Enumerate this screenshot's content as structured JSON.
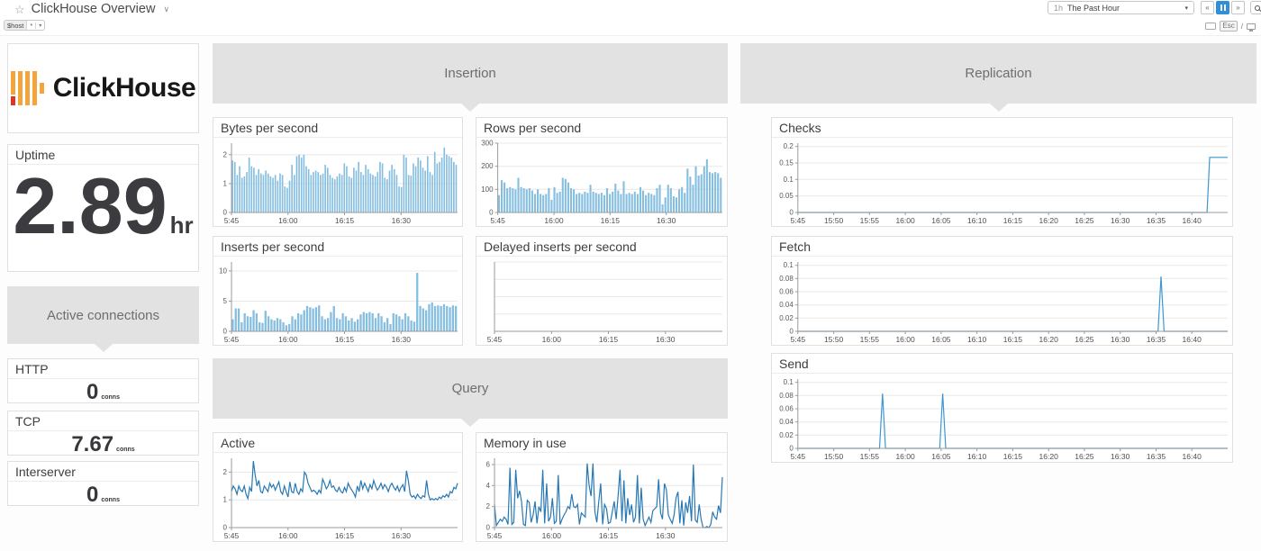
{
  "topbar": {
    "title": "ClickHouse Overview",
    "template_var": {
      "name": "$host",
      "value": "*"
    },
    "time_range": {
      "abbrev": "1h",
      "label": "The Past Hour"
    },
    "hints": {
      "esc": "Esc",
      "slash": "/"
    }
  },
  "icons": {
    "star": "☆",
    "title_chevron": "∨",
    "dropdown_caret": "▾",
    "skip_back": "«",
    "skip_forward": "»"
  },
  "sections": {
    "insertion": "Insertion",
    "query": "Query",
    "replication": "Replication",
    "active_connections": "Active connections"
  },
  "left": {
    "brand": "ClickHouse",
    "uptime": {
      "title": "Uptime",
      "value": "2.89",
      "unit": "hr"
    },
    "connections": [
      {
        "title": "HTTP",
        "value": "0",
        "unit": "conns"
      },
      {
        "title": "TCP",
        "value": "7.67",
        "unit": "conns"
      },
      {
        "title": "Interserver",
        "value": "0",
        "unit": "conns"
      }
    ]
  },
  "colors": {
    "accent_blue": "#2f8fd8",
    "bar_blue": "#86bee0",
    "line_blue": "#2878b4",
    "replication_line_blue": "#3c97d3",
    "header_gray": "#e2e2e2",
    "logo_yellow": "#f3a43b",
    "logo_red": "#e03526"
  },
  "chart_data": {
    "bytes_per_second": {
      "title": "Bytes per second",
      "type": "bar",
      "color": "#86bee0",
      "ylim": [
        0,
        2.4
      ],
      "yticks": [
        {
          "v": 0,
          "label": "0"
        },
        {
          "v": 1,
          "label": "1"
        },
        {
          "v": 2,
          "label": "2"
        }
      ],
      "xticks": [
        {
          "pos": 0,
          "label": "5:45"
        },
        {
          "pos": 0.25,
          "label": "16:00"
        },
        {
          "pos": 0.5,
          "label": "16:15"
        },
        {
          "pos": 0.75,
          "label": "16:30"
        }
      ],
      "values": [
        1.8,
        1.75,
        1.3,
        1.6,
        1.2,
        1.25,
        1.4,
        1.9,
        1.6,
        1.55,
        1.3,
        1.5,
        1.35,
        1.3,
        1.45,
        1.35,
        1.25,
        1.2,
        1.3,
        1.1,
        1.35,
        1.3,
        0.9,
        0.85,
        1.1,
        1.65,
        1.3,
        1.95,
        2.0,
        1.9,
        2.0,
        1.6,
        1.5,
        1.3,
        1.4,
        1.45,
        1.4,
        1.3,
        1.35,
        1.65,
        1.55,
        1.3,
        1.2,
        1.15,
        1.25,
        1.35,
        1.3,
        1.7,
        1.6,
        1.25,
        1.2,
        1.55,
        1.45,
        1.75,
        1.4,
        1.3,
        1.65,
        1.5,
        1.35,
        1.3,
        1.25,
        1.4,
        1.75,
        1.7,
        1.2,
        1.15,
        1.45,
        1.65,
        1.5,
        1.3,
        0.9,
        0.88,
        2.0,
        1.9,
        1.3,
        1.28,
        1.7,
        1.6,
        1.9,
        1.8,
        1.55,
        1.45,
        1.95,
        1.4,
        1.3,
        2.1,
        1.7,
        1.75,
        1.9,
        2.25,
        2.0,
        1.95,
        1.9,
        1.75,
        1.65
      ]
    },
    "rows_per_second": {
      "title": "Rows per second",
      "type": "bar",
      "color": "#86bee0",
      "ylim": [
        0,
        300
      ],
      "yticks": [
        {
          "v": 0,
          "label": "0"
        },
        {
          "v": 100,
          "label": "100"
        },
        {
          "v": 200,
          "label": "200"
        },
        {
          "v": 300,
          "label": "300"
        }
      ],
      "xticks": [
        {
          "pos": 0,
          "label": "5:45"
        },
        {
          "pos": 0.25,
          "label": "16:00"
        },
        {
          "pos": 0.5,
          "label": "16:15"
        },
        {
          "pos": 0.75,
          "label": "16:30"
        }
      ],
      "values": [
        75,
        140,
        130,
        105,
        110,
        105,
        100,
        150,
        110,
        105,
        100,
        105,
        95,
        80,
        100,
        80,
        75,
        80,
        105,
        55,
        110,
        85,
        90,
        150,
        145,
        130,
        105,
        100,
        80,
        85,
        80,
        90,
        85,
        120,
        90,
        85,
        80,
        85,
        75,
        105,
        80,
        90,
        125,
        95,
        80,
        135,
        80,
        85,
        80,
        90,
        80,
        110,
        95,
        75,
        85,
        80,
        75,
        105,
        120,
        35,
        65,
        120,
        105,
        70,
        65,
        100,
        110,
        85,
        190,
        155,
        120,
        200,
        160,
        165,
        200,
        230,
        175,
        170,
        175,
        170,
        150
      ]
    },
    "inserts_per_second": {
      "title": "Inserts per second",
      "type": "bar",
      "color": "#86bee0",
      "ylim": [
        0,
        11.5
      ],
      "yticks": [
        {
          "v": 0,
          "label": "0"
        },
        {
          "v": 5,
          "label": "5"
        },
        {
          "v": 10,
          "label": "10"
        }
      ],
      "xticks": [
        {
          "pos": 0,
          "label": "5:45"
        },
        {
          "pos": 0.25,
          "label": "16:00"
        },
        {
          "pos": 0.5,
          "label": "16:15"
        },
        {
          "pos": 0.75,
          "label": "16:30"
        }
      ],
      "values": [
        2,
        3.8,
        3.8,
        1.5,
        3,
        2.5,
        2.4,
        3.5,
        3,
        1.5,
        1.4,
        3.4,
        2.5,
        2,
        1.8,
        2.2,
        2,
        1.5,
        1,
        1.2,
        2.5,
        2,
        3,
        2.8,
        3.5,
        4.2,
        4,
        3.8,
        4,
        4.3,
        2.5,
        2,
        2.2,
        3.2,
        4.2,
        2.2,
        2,
        3,
        2.5,
        1.8,
        2.2,
        1.6,
        2,
        2.8,
        3.2,
        3,
        3.2,
        3,
        2.2,
        3,
        2.5,
        1.5,
        2.2,
        1.2,
        3,
        2.8,
        2.5,
        2,
        3,
        2.5,
        1.8,
        1.6,
        9.7,
        4.2,
        3.8,
        3.5,
        4.5,
        4.8,
        4.2,
        4.3,
        4.2,
        4.5,
        4.2,
        4,
        4.3,
        4.2
      ]
    },
    "delayed_inserts_per_second": {
      "title": "Delayed inserts per second",
      "type": "line",
      "color": "#2878b4",
      "ylim": [
        0,
        1
      ],
      "yticks": [
        {
          "v": 0.25,
          "label": ""
        },
        {
          "v": 0.5,
          "label": ""
        },
        {
          "v": 0.75,
          "label": ""
        },
        {
          "v": 1,
          "label": ""
        }
      ],
      "xticks": [
        {
          "pos": 0,
          "label": "5:45"
        },
        {
          "pos": 0.25,
          "label": "16:00"
        },
        {
          "pos": 0.5,
          "label": "16:15"
        },
        {
          "pos": 0.75,
          "label": "16:30"
        }
      ],
      "values": []
    },
    "query_active": {
      "title": "Active",
      "type": "line",
      "color": "#2878b4",
      "ylim": [
        0,
        2.5
      ],
      "yticks": [
        {
          "v": 0,
          "label": "0"
        },
        {
          "v": 1,
          "label": "1"
        },
        {
          "v": 2,
          "label": "2"
        }
      ],
      "xticks": [
        {
          "pos": 0,
          "label": "5:45"
        },
        {
          "pos": 0.25,
          "label": "16:00"
        },
        {
          "pos": 0.5,
          "label": "16:15"
        },
        {
          "pos": 0.75,
          "label": "16:30"
        }
      ],
      "values": [
        1.3,
        1.5,
        1.4,
        1.2,
        1.5,
        1.35,
        1.3,
        1.5,
        1.2,
        1.05,
        1.45,
        1.3,
        2.4,
        1.9,
        1.5,
        1.7,
        1.3,
        1.25,
        1.5,
        1.4,
        1.3,
        1.6,
        1.45,
        1.55,
        1.35,
        1.5,
        1.65,
        1.3,
        1.2,
        1.5,
        1.3,
        1.1,
        1.65,
        1.3,
        1.25,
        1.6,
        1.3,
        1.2,
        1.4,
        1.3,
        2.0,
        1.9,
        1.6,
        1.45,
        1.3,
        1.35,
        1.3,
        1.2,
        1.35,
        1.25,
        1.75,
        1.6,
        1.4,
        1.5,
        1.7,
        1.45,
        1.5,
        1.35,
        1.3,
        1.45,
        1.3,
        1.25,
        1.45,
        1.3,
        1.6,
        1.45,
        1.35,
        1.25,
        1.1,
        1.5,
        1.3,
        1.7,
        1.4,
        1.6,
        1.45,
        1.3,
        1.55,
        1.4,
        1.7,
        1.5,
        1.35,
        1.45,
        1.6,
        1.4,
        1.55,
        1.45,
        1.3,
        1.5,
        1.6,
        1.45,
        1.35,
        1.5,
        1.3,
        1.45,
        1.55,
        1.3,
        2.05,
        1.7,
        1.2,
        1.1,
        1.15,
        1.05,
        1.2,
        1.1,
        1.05,
        1.15,
        1.1,
        1.7,
        1.2,
        1.0,
        1.05,
        1.0,
        1.05,
        1.0,
        1.1,
        1.05,
        1.15,
        1.1,
        1.2,
        1.1,
        1.3,
        1.25,
        1.45,
        1.4,
        1.6
      ]
    },
    "memory_in_use": {
      "title": "Memory in use",
      "type": "line",
      "color": "#2878b4",
      "ylim": [
        0,
        6.6
      ],
      "yticks": [
        {
          "v": 0,
          "label": "0"
        },
        {
          "v": 2,
          "label": "2"
        },
        {
          "v": 4,
          "label": "4"
        },
        {
          "v": 6,
          "label": "6"
        }
      ],
      "xticks": [
        {
          "pos": 0,
          "label": "5:45"
        },
        {
          "pos": 0.25,
          "label": "16:00"
        },
        {
          "pos": 0.5,
          "label": "16:15"
        },
        {
          "pos": 0.75,
          "label": "16:30"
        }
      ],
      "values": [
        2.2,
        0.2,
        0.5,
        0.8,
        0.6,
        1.0,
        0.8,
        0.3,
        5.7,
        0.3,
        0.5,
        5.5,
        2.8,
        3.5,
        2.5,
        0.3,
        0.2,
        2.6,
        2.4,
        0.5,
        1.2,
        2.5,
        0.4,
        2.0,
        1.5,
        5.5,
        0.4,
        4.2,
        0.6,
        1.0,
        2.8,
        0.4,
        0.6,
        5.0,
        0.3,
        0.8,
        1.2,
        1.5,
        2.0,
        1.8,
        3.2,
        2.0,
        1.9,
        2.2,
        0.3,
        1.4,
        1.2,
        1.0,
        6.1,
        4.0,
        3.0,
        6.1,
        1.5,
        0.5,
        2.5,
        4.2,
        0.3,
        2.2,
        1.8,
        0.4,
        0.5,
        1.5,
        2.5,
        0.8,
        3.0,
        5.5,
        0.6,
        4.5,
        0.4,
        2.8,
        1.2,
        2.2,
        0.5,
        1.0,
        5.0,
        0.4,
        3.8,
        0.8,
        0.2,
        0.6,
        1.0,
        0.5,
        1.6,
        1.8,
        2.0,
        4.6,
        1.4,
        0.8,
        4.2,
        3.6,
        1.2,
        0.8,
        0.4,
        1.2,
        2.8,
        3.4,
        0.4,
        2.6,
        0.2,
        2.4,
        1.4,
        3.0,
        0.6,
        6.0,
        0.7,
        0.5,
        2.2,
        0.8,
        0,
        0,
        0.1,
        0,
        0.3,
        1.5,
        1.0,
        0.8,
        2.1,
        1.4,
        4.8
      ]
    },
    "checks": {
      "title": "Checks",
      "type": "line",
      "color": "#3c97d3",
      "ylim": [
        0,
        0.21
      ],
      "yticks": [
        {
          "v": 0,
          "label": "0"
        },
        {
          "v": 0.05,
          "label": "0.05"
        },
        {
          "v": 0.1,
          "label": "0.1"
        },
        {
          "v": 0.15,
          "label": "0.15"
        },
        {
          "v": 0.2,
          "label": "0.2"
        }
      ],
      "xticks": [
        {
          "pos": 0,
          "label": "5:45"
        },
        {
          "pos": 0.0833,
          "label": "15:50"
        },
        {
          "pos": 0.1667,
          "label": "15:55"
        },
        {
          "pos": 0.25,
          "label": "16:00"
        },
        {
          "pos": 0.3333,
          "label": "16:05"
        },
        {
          "pos": 0.4167,
          "label": "16:10"
        },
        {
          "pos": 0.5,
          "label": "16:15"
        },
        {
          "pos": 0.5833,
          "label": "16:20"
        },
        {
          "pos": 0.6667,
          "label": "16:25"
        },
        {
          "pos": 0.75,
          "label": "16:30"
        },
        {
          "pos": 0.8333,
          "label": "16:35"
        },
        {
          "pos": 0.9167,
          "label": "16:40"
        }
      ],
      "points": [
        [
          0,
          0
        ],
        [
          0.952,
          0
        ],
        [
          0.958,
          0.167
        ],
        [
          1,
          0.167
        ]
      ]
    },
    "fetch": {
      "title": "Fetch",
      "type": "line",
      "color": "#3c97d3",
      "ylim": [
        0,
        0.105
      ],
      "yticks": [
        {
          "v": 0,
          "label": "0"
        },
        {
          "v": 0.02,
          "label": "0.02"
        },
        {
          "v": 0.04,
          "label": "0.04"
        },
        {
          "v": 0.06,
          "label": "0.06"
        },
        {
          "v": 0.08,
          "label": "0.08"
        },
        {
          "v": 0.1,
          "label": "0.1"
        }
      ],
      "xticks": [
        {
          "pos": 0,
          "label": "5:45"
        },
        {
          "pos": 0.0833,
          "label": "15:50"
        },
        {
          "pos": 0.1667,
          "label": "15:55"
        },
        {
          "pos": 0.25,
          "label": "16:00"
        },
        {
          "pos": 0.3333,
          "label": "16:05"
        },
        {
          "pos": 0.4167,
          "label": "16:10"
        },
        {
          "pos": 0.5,
          "label": "16:15"
        },
        {
          "pos": 0.5833,
          "label": "16:20"
        },
        {
          "pos": 0.6667,
          "label": "16:25"
        },
        {
          "pos": 0.75,
          "label": "16:30"
        },
        {
          "pos": 0.8333,
          "label": "16:35"
        },
        {
          "pos": 0.9167,
          "label": "16:40"
        }
      ],
      "points": [
        [
          0,
          0
        ],
        [
          0.838,
          0
        ],
        [
          0.845,
          0.083
        ],
        [
          0.852,
          0
        ],
        [
          1,
          0
        ]
      ]
    },
    "send": {
      "title": "Send",
      "type": "line",
      "color": "#3c97d3",
      "ylim": [
        0,
        0.105
      ],
      "yticks": [
        {
          "v": 0,
          "label": "0"
        },
        {
          "v": 0.02,
          "label": "0.02"
        },
        {
          "v": 0.04,
          "label": "0.04"
        },
        {
          "v": 0.06,
          "label": "0.06"
        },
        {
          "v": 0.08,
          "label": "0.08"
        },
        {
          "v": 0.1,
          "label": "0.1"
        }
      ],
      "xticks": [
        {
          "pos": 0,
          "label": "5:45"
        },
        {
          "pos": 0.0833,
          "label": "15:50"
        },
        {
          "pos": 0.1667,
          "label": "15:55"
        },
        {
          "pos": 0.25,
          "label": "16:00"
        },
        {
          "pos": 0.3333,
          "label": "16:05"
        },
        {
          "pos": 0.4167,
          "label": "16:10"
        },
        {
          "pos": 0.5,
          "label": "16:15"
        },
        {
          "pos": 0.5833,
          "label": "16:20"
        },
        {
          "pos": 0.6667,
          "label": "16:25"
        },
        {
          "pos": 0.75,
          "label": "16:30"
        },
        {
          "pos": 0.8333,
          "label": "16:35"
        },
        {
          "pos": 0.9167,
          "label": "16:40"
        }
      ],
      "points": [
        [
          0,
          0
        ],
        [
          0.19,
          0
        ],
        [
          0.197,
          0.083
        ],
        [
          0.204,
          0
        ],
        [
          0.33,
          0
        ],
        [
          0.337,
          0.083
        ],
        [
          0.344,
          0
        ],
        [
          1,
          0
        ]
      ]
    }
  }
}
